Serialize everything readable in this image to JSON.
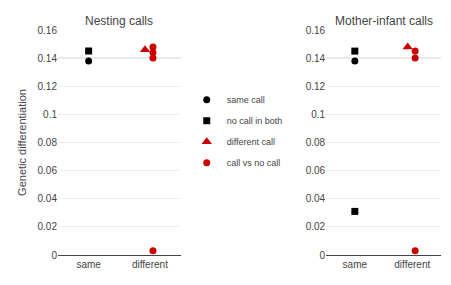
{
  "chart_data": [
    {
      "type": "scatter",
      "title": "Nesting calls",
      "ylabel": "Genetic differentiation",
      "xlim": [
        0.5,
        2.5
      ],
      "xticks": [
        {
          "value": 1,
          "label": "same"
        },
        {
          "value": 2,
          "label": "different"
        }
      ],
      "ylim": [
        0,
        0.16
      ],
      "yticks": [
        0,
        0.02,
        0.04,
        0.06,
        0.08,
        0.1,
        0.12,
        0.14,
        0.16
      ],
      "reference_line": 0.14,
      "grid": "y",
      "legend": "center",
      "series": [
        {
          "name": "same call",
          "color": "#000000",
          "marker": "circle",
          "x": [
            1.0
          ],
          "y": [
            0.138
          ]
        },
        {
          "name": "no call in both",
          "color": "#000000",
          "marker": "square",
          "x": [
            1.0
          ],
          "y": [
            0.145
          ]
        },
        {
          "name": "different call",
          "color": "#cc0000",
          "marker": "triangle-up",
          "x": [
            1.92
          ],
          "y": [
            0.146
          ]
        },
        {
          "name": "call vs no call",
          "color": "#cc0000",
          "marker": "circle",
          "x": [
            2.05,
            2.05,
            2.05,
            2.05
          ],
          "y": [
            0.148,
            0.144,
            0.14,
            0.003
          ]
        }
      ]
    },
    {
      "type": "scatter",
      "title": "Mother-infant calls",
      "xlim": [
        0.5,
        2.5
      ],
      "xticks": [
        {
          "value": 1,
          "label": "same"
        },
        {
          "value": 2,
          "label": "different"
        }
      ],
      "ylim": [
        0,
        0.16
      ],
      "yticks": [
        0,
        0.02,
        0.04,
        0.06,
        0.08,
        0.1,
        0.12,
        0.14,
        0.16
      ],
      "reference_line": 0.14,
      "grid": "y",
      "legend": "center",
      "series": [
        {
          "name": "same call",
          "color": "#000000",
          "marker": "circle",
          "x": [
            1.0
          ],
          "y": [
            0.138
          ]
        },
        {
          "name": "no call in both",
          "color": "#000000",
          "marker": "square",
          "x": [
            1.0,
            1.0
          ],
          "y": [
            0.145,
            0.031
          ]
        },
        {
          "name": "different call",
          "color": "#cc0000",
          "marker": "triangle-up",
          "x": [
            1.92
          ],
          "y": [
            0.148
          ]
        },
        {
          "name": "call vs no call",
          "color": "#cc0000",
          "marker": "circle",
          "x": [
            2.05,
            2.05,
            2.05
          ],
          "y": [
            0.145,
            0.14,
            0.003
          ]
        }
      ]
    }
  ]
}
